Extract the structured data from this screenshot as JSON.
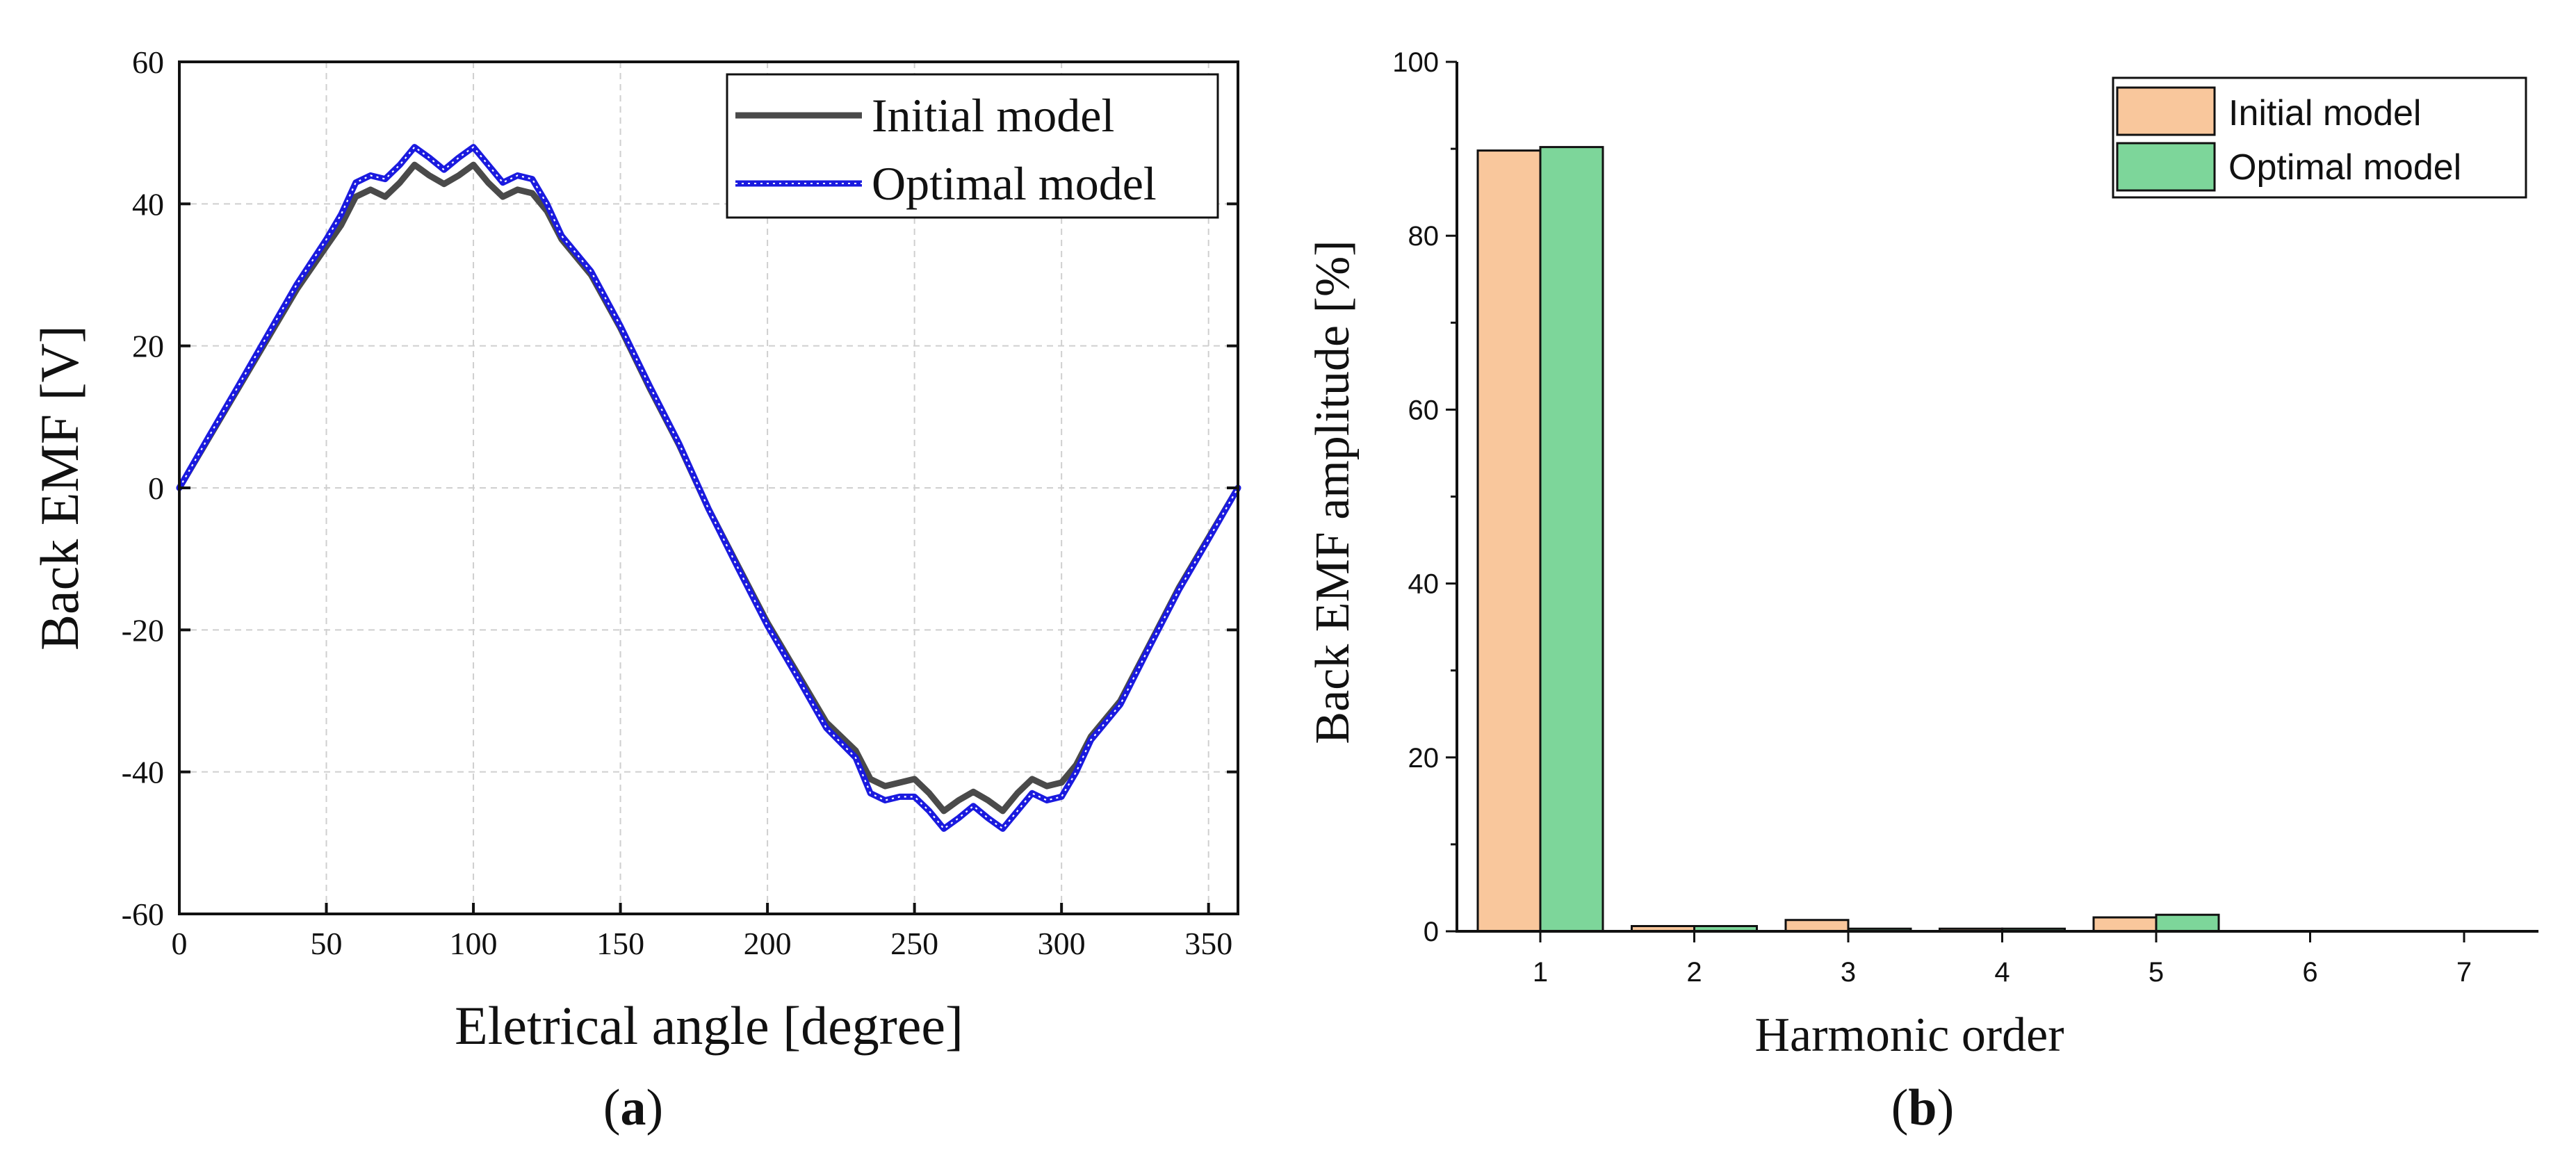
{
  "chart_data": [
    {
      "type": "line",
      "panel": "a",
      "caption": "a",
      "xlabel": "Eletrical angle [degree]",
      "ylabel": "Back EMF [V]",
      "xlim": [
        0,
        360
      ],
      "ylim": [
        -60,
        60
      ],
      "xticks": [
        0,
        50,
        100,
        150,
        200,
        250,
        300,
        350
      ],
      "yticks": [
        -60,
        -40,
        -20,
        0,
        20,
        40,
        60
      ],
      "grid": true,
      "legend_position": "top-right",
      "series": [
        {
          "name": "Initial model",
          "color": "#4a4a4a",
          "x": [
            0,
            10,
            20,
            30,
            40,
            50,
            55,
            60,
            65,
            70,
            75,
            80,
            85,
            90,
            95,
            100,
            105,
            110,
            115,
            120,
            125,
            130,
            140,
            150,
            160,
            170,
            180,
            190,
            200,
            210,
            220,
            230,
            235,
            240,
            245,
            250,
            255,
            260,
            265,
            270,
            275,
            280,
            285,
            290,
            295,
            300,
            305,
            310,
            320,
            330,
            340,
            350,
            360
          ],
          "y": [
            0,
            7,
            14,
            21,
            28,
            34,
            37,
            41,
            42,
            41,
            43,
            45.5,
            44,
            42.8,
            44,
            45.5,
            43,
            41,
            42,
            41.5,
            39,
            35,
            30,
            22.5,
            14,
            6,
            -3,
            -11,
            -19,
            -26,
            -33,
            -37,
            -41,
            -42,
            -41.5,
            -41,
            -43,
            -45.5,
            -44,
            -42.8,
            -44,
            -45.5,
            -43,
            -41,
            -42,
            -41.5,
            -39,
            -35,
            -30,
            -22,
            -14,
            -7,
            0
          ]
        },
        {
          "name": "Optimal model",
          "color": "#1a1adf",
          "x": [
            0,
            10,
            20,
            30,
            40,
            50,
            55,
            60,
            65,
            70,
            75,
            80,
            85,
            90,
            95,
            100,
            105,
            110,
            115,
            120,
            125,
            130,
            140,
            150,
            160,
            170,
            180,
            190,
            200,
            210,
            220,
            230,
            235,
            240,
            245,
            250,
            255,
            260,
            265,
            270,
            275,
            280,
            285,
            290,
            295,
            300,
            305,
            310,
            320,
            330,
            340,
            350,
            360
          ],
          "y": [
            0,
            7.2,
            14.3,
            21.5,
            28.7,
            35,
            38.5,
            43,
            44,
            43.5,
            45.5,
            48,
            46.5,
            44.8,
            46.5,
            48,
            45.5,
            43,
            44,
            43.5,
            40,
            35.5,
            30.5,
            22.8,
            14.3,
            6.2,
            -3,
            -11.3,
            -19.4,
            -26.5,
            -33.8,
            -38,
            -43,
            -44,
            -43.5,
            -43.5,
            -45.5,
            -48,
            -46.5,
            -44.8,
            -46.5,
            -48,
            -45.5,
            -43,
            -44,
            -43.5,
            -40,
            -35.5,
            -30.5,
            -22.3,
            -14.3,
            -7.2,
            0
          ]
        }
      ]
    },
    {
      "type": "bar",
      "panel": "b",
      "caption": "b",
      "xlabel": "Harmonic order",
      "ylabel": "Back EMF amplitude [%]",
      "categories": [
        "1",
        "2",
        "3",
        "4",
        "5",
        "6",
        "7"
      ],
      "ylim": [
        0,
        100
      ],
      "yticks": [
        0,
        20,
        40,
        60,
        80,
        100
      ],
      "grid": false,
      "legend_position": "top-right",
      "series": [
        {
          "name": "Initial model",
          "color": "#f9c79c",
          "values": [
            89.8,
            0.6,
            1.3,
            0.3,
            1.6,
            0,
            0
          ]
        },
        {
          "name": "Optimal model",
          "color": "#7dd69a",
          "values": [
            90.2,
            0.6,
            0.3,
            0.3,
            1.9,
            0,
            0
          ]
        }
      ]
    }
  ]
}
